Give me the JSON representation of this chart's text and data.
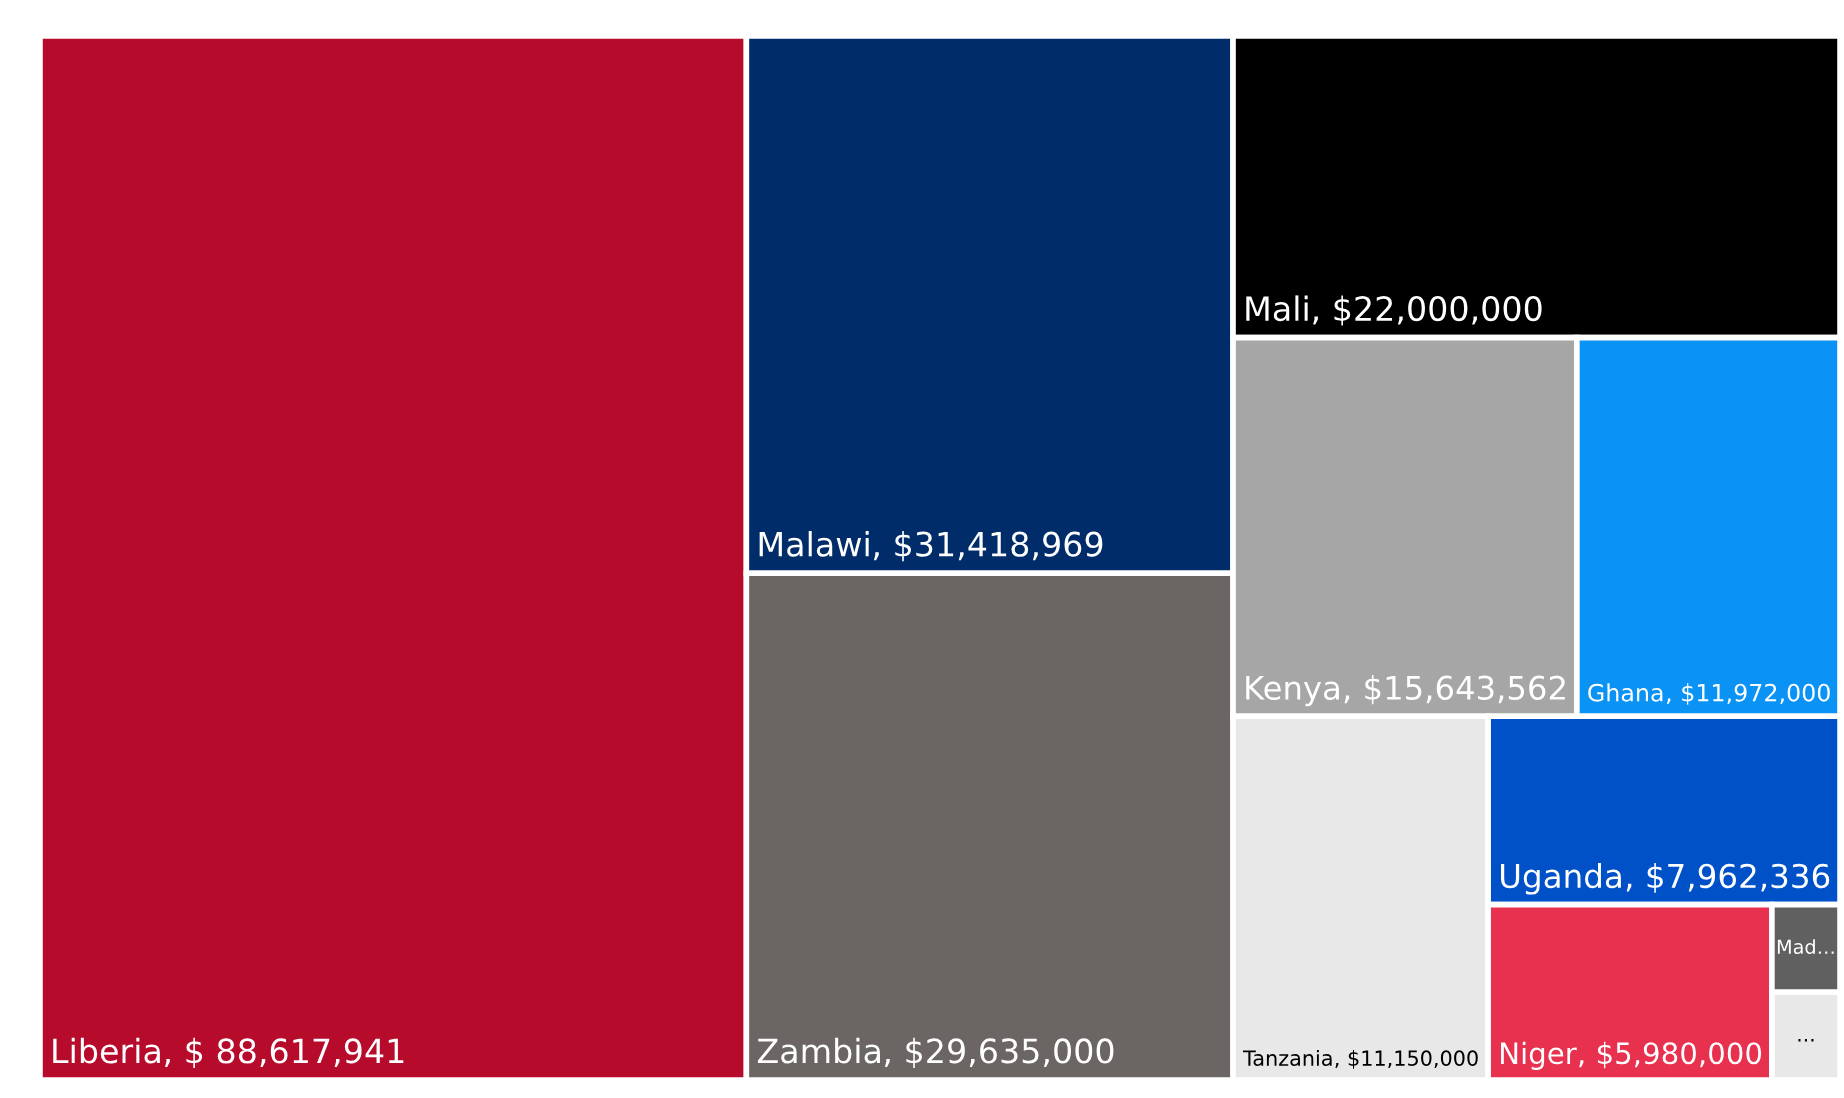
{
  "chart_data": {
    "type": "other",
    "categories": [
      "Liberia",
      "Malawi",
      "Zambia",
      "Mali",
      "Kenya",
      "Ghana",
      "Tanzania",
      "Uganda",
      "Niger",
      "Mad…",
      "…"
    ],
    "values": [
      88617941,
      31418969,
      29635000,
      22000000,
      15643562,
      11972000,
      11150000,
      7962336,
      5980000,
      null,
      null
    ],
    "value_labels": [
      ", $ 88,617,941",
      ", $31,418,969",
      ", $29,635,000",
      ", $22,000,000",
      ", $15,643,562",
      ", $11,972,000",
      ", $11,150,000",
      ", $7,962,336",
      ", $5,980,000",
      null,
      null
    ],
    "colors": [
      "#b70b2c",
      "#002d6a",
      "#6b6663",
      "#000000",
      "#a6a6a6",
      "#0a93f5",
      "#e8e8e8",
      "#0050c8",
      "#e8304f",
      "#606060",
      "#e8e8e8"
    ]
  }
}
